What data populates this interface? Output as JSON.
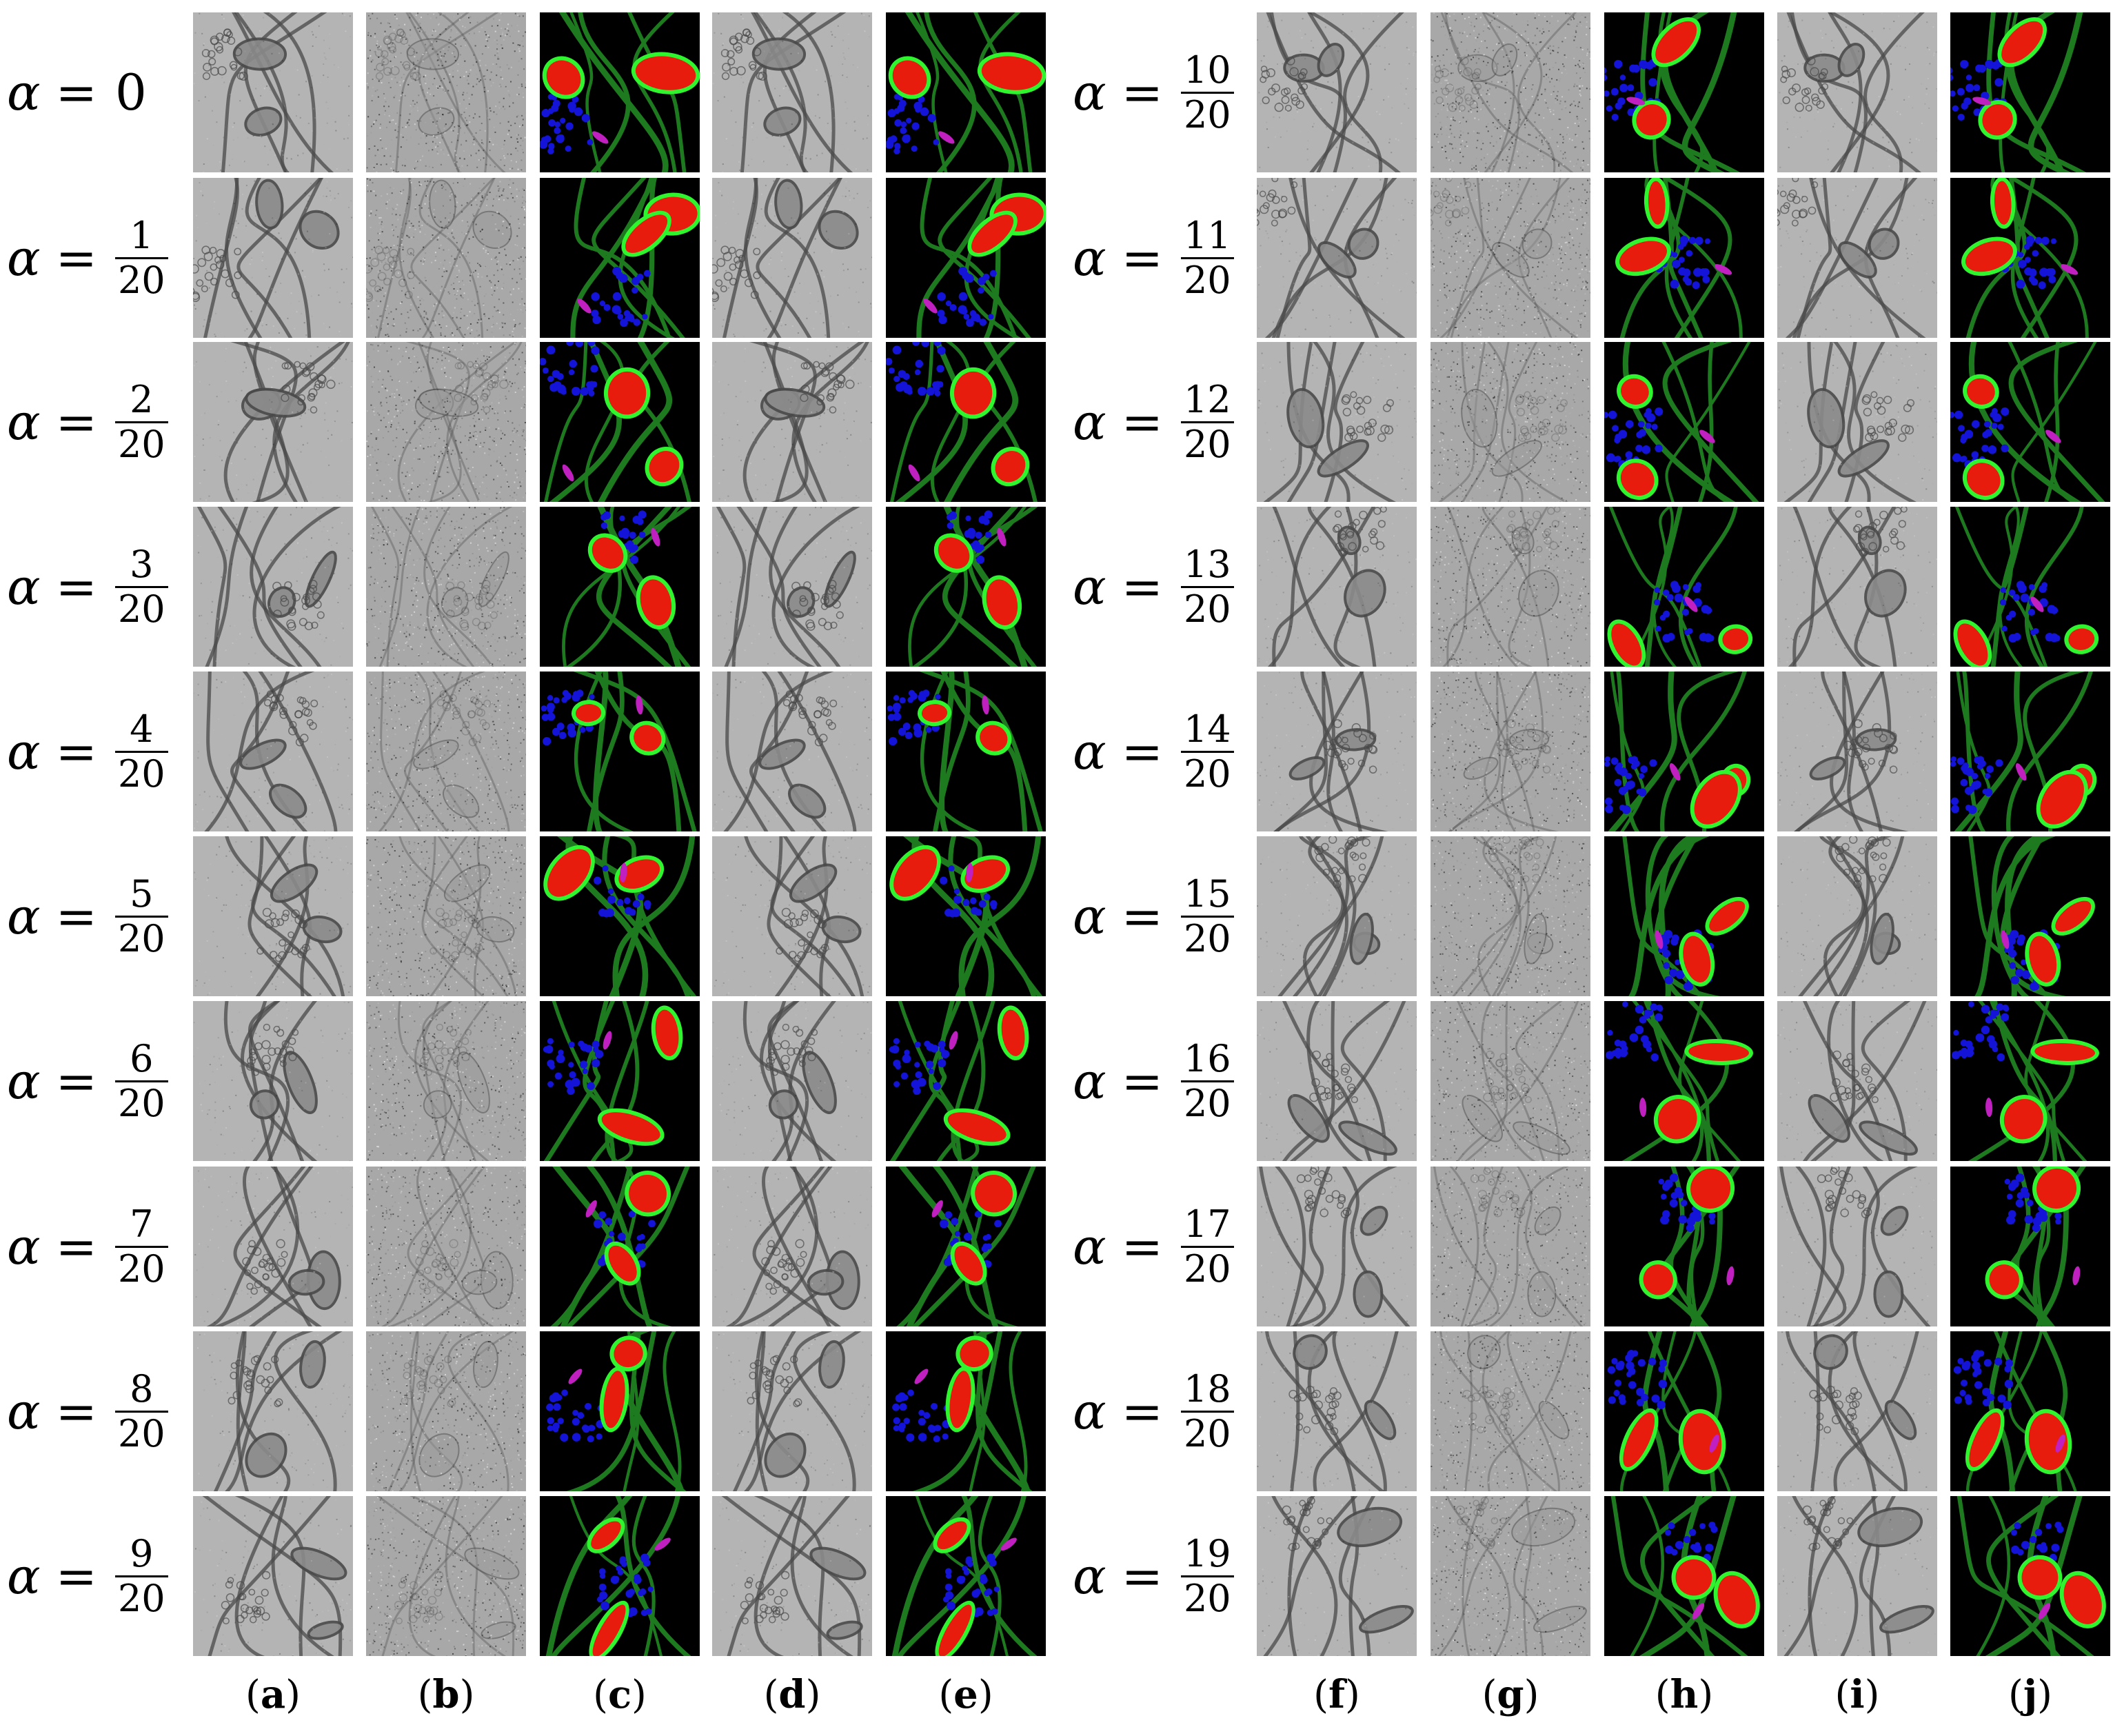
{
  "alpha_symbol": "α",
  "equals": "=",
  "denominator": "20",
  "rows_left": [
    {
      "whole": "0"
    },
    {
      "num": "1"
    },
    {
      "num": "2"
    },
    {
      "num": "3"
    },
    {
      "num": "4"
    },
    {
      "num": "5"
    },
    {
      "num": "6"
    },
    {
      "num": "7"
    },
    {
      "num": "8"
    },
    {
      "num": "9"
    }
  ],
  "rows_right": [
    {
      "num": "10"
    },
    {
      "num": "11"
    },
    {
      "num": "12"
    },
    {
      "num": "13"
    },
    {
      "num": "14"
    },
    {
      "num": "15"
    },
    {
      "num": "16"
    },
    {
      "num": "17"
    },
    {
      "num": "18"
    },
    {
      "num": "19"
    }
  ],
  "columns": [
    {
      "letter": "a",
      "kind": "em"
    },
    {
      "letter": "b",
      "kind": "noisy"
    },
    {
      "letter": "c",
      "kind": "seg"
    },
    {
      "letter": "d",
      "kind": "em"
    },
    {
      "letter": "e",
      "kind": "seg"
    },
    {
      "letter": "f",
      "kind": "em"
    },
    {
      "letter": "g",
      "kind": "noisy"
    },
    {
      "letter": "h",
      "kind": "seg"
    },
    {
      "letter": "i",
      "kind": "em"
    },
    {
      "letter": "j",
      "kind": "seg"
    }
  ],
  "colors": {
    "background": "#ffffff",
    "em_base": "#b4b4b4",
    "em_dark": "#4a4a4a",
    "noise_base": "#a8a8a8",
    "seg_background": "#000000",
    "membrane": "#1e7a1e",
    "mitochondria": "#e81c0c",
    "mito_border": "#2ef52e",
    "vesicles": "#1414d8",
    "synapse": "#c020c0"
  }
}
